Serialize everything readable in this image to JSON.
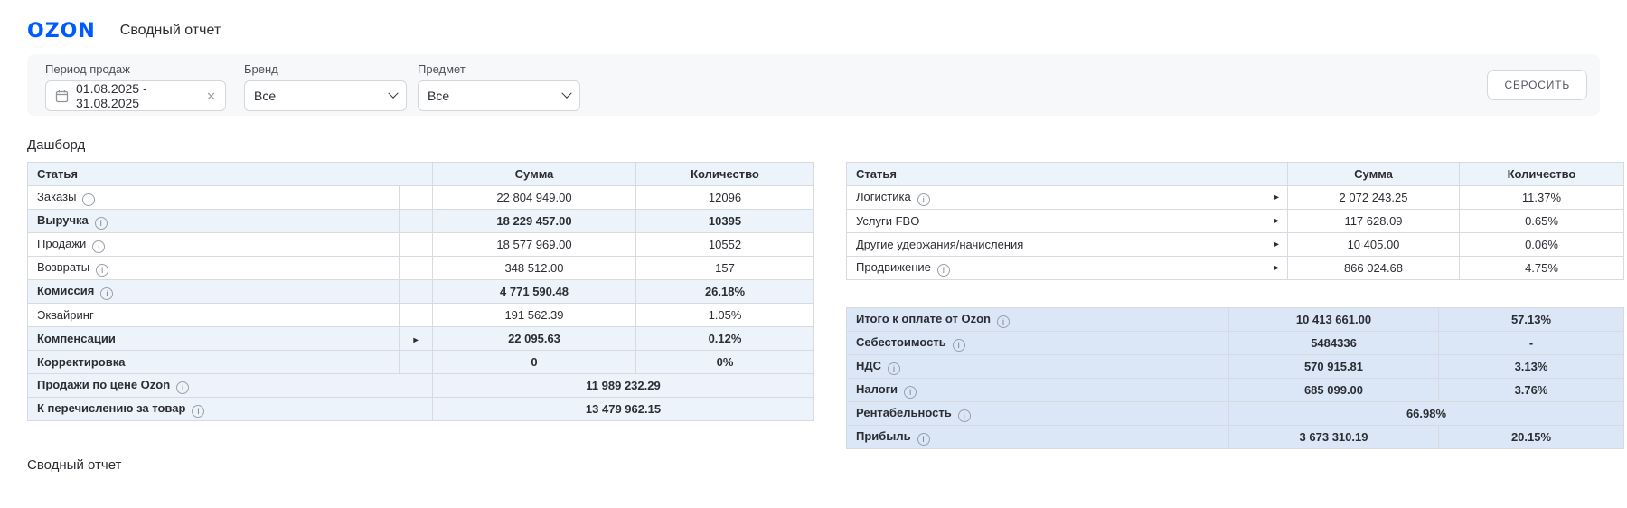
{
  "header": {
    "logo": "OZON",
    "title": "Сводный отчет"
  },
  "filters": {
    "period": {
      "label": "Период продаж",
      "value": "01.08.2025  -  31.08.2025"
    },
    "brand": {
      "label": "Бренд",
      "value": "Все"
    },
    "subject": {
      "label": "Предмет",
      "value": "Все"
    },
    "reset_label": "СБРОСИТЬ"
  },
  "icons": {
    "calendar-icon": "calendar glyph",
    "clear-icon": "✕",
    "chevron-down-icon": "⌄",
    "info-icon": "i",
    "expand-icon": "▸"
  },
  "dashboard": {
    "title": "Дашборд",
    "left_table": {
      "headers": [
        "Статья",
        "Сумма",
        "Количество"
      ],
      "rows": [
        {
          "label": "Заказы",
          "info": true,
          "sum": "22 804 949.00",
          "qty": "12096"
        },
        {
          "label": "Выручка",
          "info": true,
          "bold": true,
          "hl": true,
          "sum": "18 229 457.00",
          "qty": "10395"
        },
        {
          "label": "Продажи",
          "info": true,
          "sum": "18 577 969.00",
          "qty": "10552"
        },
        {
          "label": "Возвраты",
          "info": true,
          "sum": "348 512.00",
          "qty": "157"
        },
        {
          "label": "Комиссия",
          "info": true,
          "bold": true,
          "hl": true,
          "sum": "4 771 590.48",
          "qty": "26.18%"
        },
        {
          "label": "Эквайринг",
          "sum": "191 562.39",
          "qty": "1.05%"
        },
        {
          "label": "Компенсации",
          "expand": true,
          "bold": true,
          "hl": true,
          "sum": "22 095.63",
          "qty": "0.12%"
        },
        {
          "label": "Корректировка",
          "bold": true,
          "hl": true,
          "sum": "0",
          "qty": "0%"
        },
        {
          "label": "Продажи по цене Ozon",
          "info": true,
          "bold": true,
          "hl": true,
          "merged": "11 989 232.29"
        },
        {
          "label": "К перечислению за товар",
          "info": true,
          "bold": true,
          "hl": true,
          "merged": "13 479 962.15"
        }
      ]
    },
    "right_table": {
      "headers": [
        "Статья",
        "Сумма",
        "Количество"
      ],
      "rows": [
        {
          "label": "Логистика",
          "info": true,
          "expand": true,
          "sum": "2 072 243.25",
          "qty": "11.37%"
        },
        {
          "label": "Услуги FBO",
          "expand": true,
          "sum": "117 628.09",
          "qty": "0.65%"
        },
        {
          "label": "Другие удержания/начисления",
          "expand": true,
          "sum": "10 405.00",
          "qty": "0.06%"
        },
        {
          "label": "Продвижение",
          "info": true,
          "expand": true,
          "sum": "866 024.68",
          "qty": "4.75%"
        }
      ]
    },
    "totals_table": {
      "rows": [
        {
          "label": "Итого к оплате от Ozon",
          "info": true,
          "sum": "10 413 661.00",
          "qty": "57.13%"
        },
        {
          "label": "Себестоимость",
          "info": true,
          "sum": "5484336",
          "qty": "-"
        },
        {
          "label": "НДС",
          "info": true,
          "sum": "570 915.81",
          "qty": "3.13%"
        },
        {
          "label": "Налоги",
          "info": true,
          "sum": "685 099.00",
          "qty": "3.76%"
        },
        {
          "label": "Рентабельность",
          "info": true,
          "merged": "66.98%"
        },
        {
          "label": "Прибыль",
          "info": true,
          "sum": "3 673 310.19",
          "qty": "20.15%"
        }
      ]
    }
  },
  "footer": {
    "title": "Сводный отчет"
  },
  "colors": {
    "brand_blue": "#005BFF",
    "highlight_row": "#EDF3FB",
    "totals_row": "#DBE7F6",
    "table_border": "#D7DBE1",
    "panel_bg": "#F7F8FA",
    "text": "#2B2D33"
  }
}
